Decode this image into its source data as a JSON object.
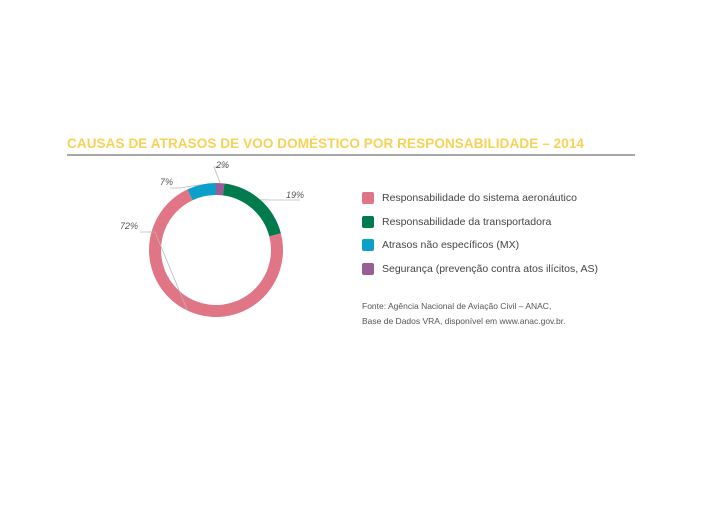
{
  "chart_data": {
    "type": "pie",
    "title": "CAUSAS DE ATRASOS DE VOO DOMÉSTICO POR RESPONSABILIDADE – 2014",
    "donut": true,
    "legend_position": "right",
    "slices": [
      {
        "key": "seguranca",
        "label": "Segurança (prevenção contra atos ilícitos, AS)",
        "value": 2,
        "value_label": "2%",
        "color": "#9b5d95"
      },
      {
        "key": "transportadora",
        "label": "Responsabilidade da transportadora",
        "value": 19,
        "value_label": "19%",
        "color": "#017a4d"
      },
      {
        "key": "sistema",
        "label": "Responsabilidade do sistema aeronáutico",
        "value": 72,
        "value_label": "72%",
        "color": "#e07585"
      },
      {
        "key": "mx",
        "label": "Atrasos não específicos (MX)",
        "value": 7,
        "value_label": "7%",
        "color": "#0c9fc9"
      }
    ],
    "legend_order": [
      "sistema",
      "transportadora",
      "mx",
      "seguranca"
    ]
  },
  "source": {
    "line1": "Fonte: Agência Nacional de Aviação Civil – ANAC,",
    "line2": "Base de Dados VRA, disponível em www.anac.gov.br."
  }
}
